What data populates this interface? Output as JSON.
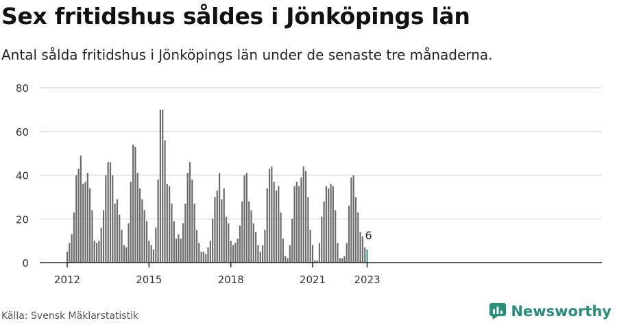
{
  "header": {
    "title": "Sex fritidshus såldes i Jönköpings län",
    "subtitle": "Antal sålda fritidshus i Jönköpings län under de senaste tre månaderna."
  },
  "footer": {
    "source": "Källa: Svensk Mäklarstatistik",
    "brand": "Newsworthy"
  },
  "colors": {
    "bar": "#6b6b6b",
    "highlight": "#2a9d8f",
    "grid": "#e0e0e0",
    "axis": "#222222",
    "brand": "#2a8f79"
  },
  "icons": {
    "brand_logo": "newsworthy-logo-icon"
  },
  "chart_data": {
    "type": "bar",
    "title": "Sex fritidshus såldes i Jönköpings län",
    "subtitle": "Antal sålda fritidshus i Jönköpings län under de senaste tre månaderna.",
    "frequency": "monthly",
    "start_month": "2012-01",
    "end_month": "2023-01",
    "ylim": [
      0,
      80
    ],
    "yticks": [
      0,
      20,
      40,
      60,
      80
    ],
    "xticks": [
      "2012",
      "2015",
      "2018",
      "2021",
      "2023"
    ],
    "grid": true,
    "highlight_last": true,
    "annotation": {
      "month": "2023-01",
      "text": "6"
    },
    "values": [
      5,
      9,
      13,
      23,
      40,
      43,
      49,
      36,
      37,
      41,
      34,
      24,
      10,
      9,
      10,
      16,
      24,
      40,
      46,
      46,
      40,
      27,
      29,
      22,
      15,
      8,
      7,
      18,
      37,
      54,
      53,
      41,
      34,
      29,
      24,
      19,
      10,
      8,
      6,
      16,
      38,
      70,
      70,
      56,
      36,
      35,
      27,
      19,
      11,
      13,
      11,
      18,
      27,
      41,
      46,
      38,
      27,
      15,
      9,
      5,
      5,
      4,
      7,
      10,
      20,
      30,
      33,
      41,
      29,
      34,
      21,
      18,
      10,
      8,
      9,
      11,
      17,
      28,
      40,
      41,
      28,
      24,
      18,
      14,
      8,
      5,
      8,
      15,
      34,
      43,
      44,
      37,
      33,
      35,
      23,
      11,
      3,
      2,
      8,
      20,
      35,
      37,
      35,
      39,
      44,
      42,
      30,
      15,
      8,
      1,
      1,
      9,
      21,
      28,
      35,
      34,
      36,
      35,
      24,
      9,
      2,
      2,
      3,
      9,
      26,
      39,
      40,
      30,
      23,
      14,
      12,
      7,
      6
    ]
  }
}
